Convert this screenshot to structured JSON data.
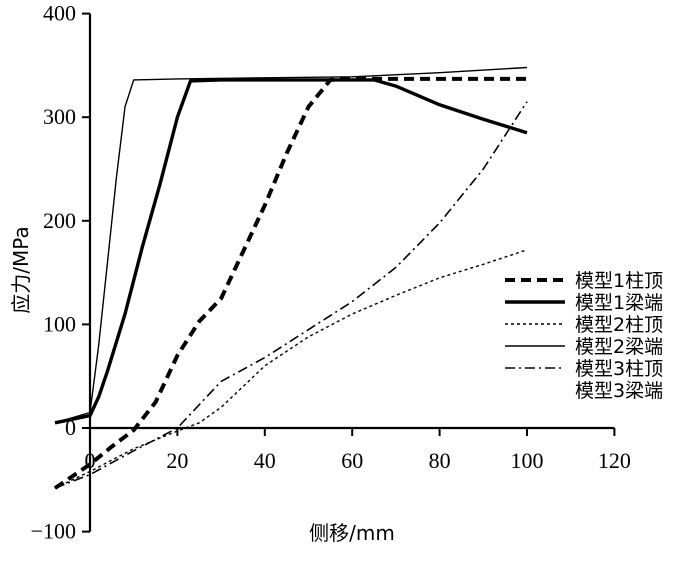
{
  "chart_data": {
    "type": "line",
    "title": "",
    "xlabel": "侧移/mm",
    "ylabel": "应力/MPa",
    "xlim": [
      0,
      120
    ],
    "ylim": [
      -100,
      400
    ],
    "x_ticks": [
      "0",
      "20",
      "40",
      "60",
      "80",
      "100",
      "120"
    ],
    "y_ticks": [
      "−100",
      "0",
      "100",
      "200",
      "300",
      "400"
    ],
    "grid": false,
    "legend_position": "right",
    "series": [
      {
        "name": "模型1柱顶",
        "style": "dashed-thick",
        "x": [
          -8,
          0,
          5,
          10,
          15,
          20,
          25,
          30,
          35,
          40,
          45,
          50,
          55,
          60,
          70,
          80,
          100
        ],
        "y": [
          -58,
          -35,
          -18,
          -2,
          25,
          70,
          103,
          125,
          170,
          215,
          265,
          310,
          336,
          337,
          337,
          337,
          337
        ]
      },
      {
        "name": "模型1梁端",
        "style": "solid-thick",
        "x": [
          -8,
          0,
          2,
          4,
          8,
          12,
          16,
          20,
          23,
          30,
          40,
          50,
          60,
          65,
          70,
          80,
          90,
          100
        ],
        "y": [
          5,
          12,
          30,
          55,
          110,
          175,
          235,
          300,
          335,
          336,
          336,
          336,
          336,
          336,
          330,
          312,
          298,
          285
        ]
      },
      {
        "name": "模型2柱顶",
        "style": "dotted-thin",
        "x": [
          -8,
          0,
          10,
          20,
          25,
          30,
          35,
          40,
          50,
          60,
          70,
          80,
          90,
          100
        ],
        "y": [
          -58,
          -42,
          -20,
          -3,
          5,
          20,
          40,
          60,
          88,
          110,
          128,
          145,
          158,
          172
        ]
      },
      {
        "name": "模型2梁端",
        "style": "solid-thin",
        "x": [
          -8,
          0,
          2,
          4,
          6,
          8,
          10,
          20,
          40,
          60,
          80,
          100
        ],
        "y": [
          5,
          15,
          80,
          160,
          240,
          310,
          336,
          337,
          338,
          339,
          343,
          348
        ]
      },
      {
        "name": "模型3柱顶",
        "style": "dashdot-thin",
        "x": [
          -8,
          0,
          10,
          20,
          30,
          40,
          50,
          60,
          70,
          80,
          90,
          100
        ],
        "y": [
          -58,
          -45,
          -22,
          0,
          45,
          68,
          95,
          122,
          155,
          198,
          250,
          315
        ]
      }
    ],
    "legend_extra": [
      "模型3梁端"
    ]
  }
}
